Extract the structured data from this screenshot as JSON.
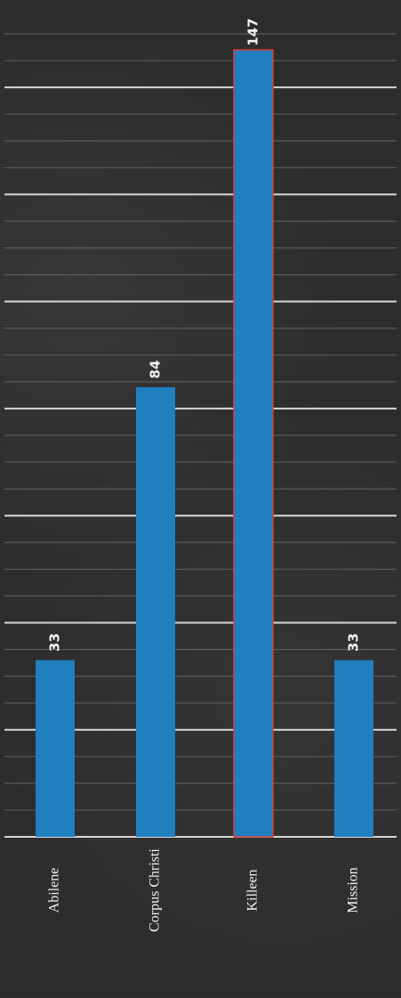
{
  "chart_data": {
    "type": "bar",
    "orientation": "vertical, page rotated 90 degrees clockwise",
    "categories": [
      "Abilene",
      "Corpus Christi",
      "Killeen",
      "Mission"
    ],
    "values": [
      33,
      84,
      147,
      33
    ],
    "data_labels": [
      "33",
      "84",
      "147",
      "33"
    ],
    "ylim": [
      0,
      150
    ],
    "grid": true,
    "legend": "none",
    "colors": {
      "bar": "#1f7fbf",
      "background": "#2b2b2b",
      "major_grid": "#d8d8d8",
      "minor_grid": "#5a5a5a",
      "highlight_outline": "#e23b3b"
    }
  }
}
